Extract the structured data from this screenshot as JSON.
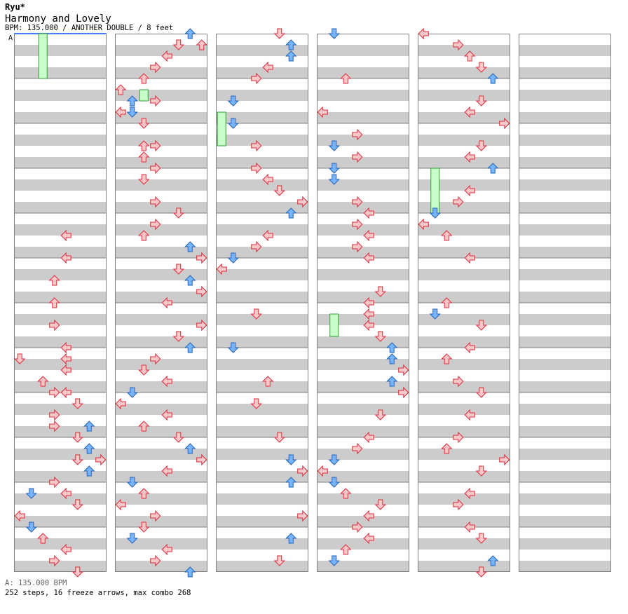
{
  "header": {
    "author": "Ryu*",
    "song_title": "Harmony and Lovely",
    "chart_info": "BPM: 135.000 / ANOTHER DOUBLE / 8 feet"
  },
  "bpm_marker": "A",
  "footer": {
    "bpm_legend": "A: 135.000 BPM",
    "stats": "252 steps, 16 freeze arrows, max combo 268"
  },
  "colors": {
    "stripe": "#cccccc",
    "lane_bg": "#ffffff",
    "border": "#808080",
    "arrow_red_fill": "#ffc8c8",
    "arrow_red_stroke": "#e0283c",
    "arrow_blue_fill": "#78b4ff",
    "arrow_blue_stroke": "#2060c0",
    "arrow_purple_fill": "#ffb4ff",
    "arrow_purple_stroke": "#d040d0",
    "freeze_fill": "#c8ffc8",
    "freeze_stroke": "#30a030",
    "bpm_line": "#4080ff"
  },
  "chart_data": {
    "type": "step-chart",
    "columns": 6,
    "measures_per_column": 12,
    "lanes": 8,
    "divisions_per_measure": 16,
    "notes": [
      [
        0,
        4.5,
        4,
        "l"
      ],
      [
        0,
        5.0,
        4,
        "l"
      ],
      [
        0,
        5.5,
        3,
        "u"
      ],
      [
        0,
        6.0,
        3,
        "u"
      ],
      [
        0,
        6.5,
        3,
        "r"
      ],
      [
        0,
        7.0,
        4,
        "l"
      ],
      [
        0,
        7.25,
        0,
        "d"
      ],
      [
        0,
        7.25,
        4,
        "l"
      ],
      [
        0,
        7.5,
        4,
        "l"
      ],
      [
        0,
        7.75,
        2,
        "u"
      ],
      [
        0,
        8.0,
        4,
        "l"
      ],
      [
        0,
        8.0,
        3,
        "r"
      ],
      [
        0,
        8.25,
        5,
        "d"
      ],
      [
        0,
        8.5,
        3,
        "r"
      ],
      [
        0,
        8.75,
        6,
        "u"
      ],
      [
        0,
        8.75,
        3,
        "r"
      ],
      [
        0,
        9.0,
        5,
        "d"
      ],
      [
        0,
        9.25,
        6,
        "u"
      ],
      [
        0,
        9.5,
        7,
        "r"
      ],
      [
        0,
        9.5,
        5,
        "d"
      ],
      [
        0,
        9.75,
        6,
        "u"
      ],
      [
        0,
        10.0,
        3,
        "r"
      ],
      [
        0,
        10.25,
        4,
        "l"
      ],
      [
        0,
        10.25,
        1,
        "d"
      ],
      [
        0,
        10.5,
        5,
        "d"
      ],
      [
        0,
        10.75,
        0,
        "l"
      ],
      [
        0,
        11.0,
        1,
        "d"
      ],
      [
        0,
        11.25,
        2,
        "u"
      ],
      [
        0,
        11.5,
        4,
        "l"
      ],
      [
        0,
        11.75,
        3,
        "r"
      ],
      [
        0,
        12.0,
        5,
        "d"
      ],
      [
        1,
        0,
        6,
        "u"
      ],
      [
        1,
        0.25,
        7,
        "u"
      ],
      [
        1,
        0.25,
        5,
        "d"
      ],
      [
        1,
        0.5,
        4,
        "l"
      ],
      [
        1,
        0.75,
        3,
        "r"
      ],
      [
        1,
        1.0,
        2,
        "u"
      ],
      [
        1,
        1.25,
        0,
        "u"
      ],
      [
        1,
        1.5,
        1,
        "u"
      ],
      [
        1,
        1.75,
        0,
        "l"
      ],
      [
        1,
        1.75,
        1,
        "d"
      ],
      [
        1,
        1.5,
        3,
        "r"
      ],
      [
        1,
        2.0,
        2,
        "d"
      ],
      [
        1,
        2.5,
        3,
        "r"
      ],
      [
        1,
        2.5,
        2,
        "u"
      ],
      [
        1,
        2.75,
        2,
        "u"
      ],
      [
        1,
        3.0,
        3,
        "r"
      ],
      [
        1,
        3.25,
        2,
        "d"
      ],
      [
        1,
        3.75,
        3,
        "r"
      ],
      [
        1,
        4.0,
        5,
        "d"
      ],
      [
        1,
        4.25,
        3,
        "r"
      ],
      [
        1,
        4.5,
        2,
        "u"
      ],
      [
        1,
        4.75,
        6,
        "u"
      ],
      [
        1,
        5.0,
        7,
        "r"
      ],
      [
        1,
        5.25,
        5,
        "d"
      ],
      [
        1,
        5.5,
        6,
        "u"
      ],
      [
        1,
        5.75,
        7,
        "r"
      ],
      [
        1,
        6.0,
        4,
        "l"
      ],
      [
        1,
        6.5,
        7,
        "r"
      ],
      [
        1,
        6.75,
        5,
        "d"
      ],
      [
        1,
        7.0,
        6,
        "u"
      ],
      [
        1,
        7.25,
        3,
        "r"
      ],
      [
        1,
        7.5,
        2,
        "d"
      ],
      [
        1,
        7.75,
        4,
        "l"
      ],
      [
        1,
        8.0,
        1,
        "d"
      ],
      [
        1,
        8.25,
        0,
        "l"
      ],
      [
        1,
        8.5,
        4,
        "l"
      ],
      [
        1,
        8.75,
        2,
        "u"
      ],
      [
        1,
        9.0,
        5,
        "d"
      ],
      [
        1,
        9.25,
        6,
        "u"
      ],
      [
        1,
        9.5,
        7,
        "r"
      ],
      [
        1,
        9.75,
        4,
        "l"
      ],
      [
        1,
        10.0,
        1,
        "d"
      ],
      [
        1,
        10.25,
        2,
        "u"
      ],
      [
        1,
        10.5,
        0,
        "l"
      ],
      [
        1,
        10.75,
        3,
        "r"
      ],
      [
        1,
        11.0,
        2,
        "d"
      ],
      [
        1,
        11.25,
        1,
        "d"
      ],
      [
        1,
        11.5,
        4,
        "l"
      ],
      [
        1,
        11.75,
        3,
        "r"
      ],
      [
        1,
        12.0,
        6,
        "u"
      ],
      [
        2,
        0,
        5,
        "d"
      ],
      [
        2,
        0.25,
        6,
        "u"
      ],
      [
        2,
        0.5,
        6,
        "u"
      ],
      [
        2,
        0.75,
        4,
        "l"
      ],
      [
        2,
        1.0,
        3,
        "r"
      ],
      [
        2,
        1.5,
        1,
        "d"
      ],
      [
        2,
        2.0,
        1,
        "d"
      ],
      [
        2,
        2.5,
        3,
        "r"
      ],
      [
        2,
        3.0,
        3,
        "r"
      ],
      [
        2,
        3.25,
        4,
        "l"
      ],
      [
        2,
        3.5,
        5,
        "d"
      ],
      [
        2,
        3.75,
        7,
        "r"
      ],
      [
        2,
        4.0,
        6,
        "u"
      ],
      [
        2,
        4.5,
        4,
        "l"
      ],
      [
        2,
        4.75,
        3,
        "r"
      ],
      [
        2,
        5.0,
        1,
        "d"
      ],
      [
        2,
        5.25,
        0,
        "l"
      ],
      [
        2,
        6.25,
        3,
        "d"
      ],
      [
        2,
        7.0,
        1,
        "d"
      ],
      [
        2,
        7.75,
        4,
        "u"
      ],
      [
        2,
        8.25,
        3,
        "d"
      ],
      [
        2,
        9.0,
        5,
        "d"
      ],
      [
        2,
        9.5,
        6,
        "d"
      ],
      [
        2,
        9.75,
        7,
        "r"
      ],
      [
        2,
        10.0,
        6,
        "u"
      ],
      [
        2,
        10.75,
        7,
        "r"
      ],
      [
        2,
        11.25,
        6,
        "u"
      ],
      [
        2,
        11.75,
        5,
        "d"
      ],
      [
        3,
        0,
        1,
        "d"
      ],
      [
        3,
        1.0,
        2,
        "u"
      ],
      [
        3,
        1.75,
        0,
        "l"
      ],
      [
        3,
        2.25,
        3,
        "r"
      ],
      [
        3,
        2.5,
        1,
        "d"
      ],
      [
        3,
        2.75,
        3,
        "r"
      ],
      [
        3,
        3.0,
        1,
        "d"
      ],
      [
        3,
        3.25,
        1,
        "d"
      ],
      [
        3,
        3.75,
        3,
        "r"
      ],
      [
        3,
        4.0,
        4,
        "l"
      ],
      [
        3,
        4.25,
        3,
        "r"
      ],
      [
        3,
        4.5,
        4,
        "l"
      ],
      [
        3,
        4.75,
        3,
        "r"
      ],
      [
        3,
        5.0,
        4,
        "l"
      ],
      [
        3,
        5.75,
        5,
        "d"
      ],
      [
        3,
        6.0,
        4,
        "l"
      ],
      [
        3,
        6.25,
        4,
        "l"
      ],
      [
        3,
        6.5,
        4,
        "l"
      ],
      [
        3,
        6.75,
        5,
        "d"
      ],
      [
        3,
        7.0,
        6,
        "u"
      ],
      [
        3,
        7.25,
        6,
        "u"
      ],
      [
        3,
        7.5,
        7,
        "r"
      ],
      [
        3,
        7.75,
        6,
        "u"
      ],
      [
        3,
        8.0,
        7,
        "r"
      ],
      [
        3,
        8.5,
        5,
        "d"
      ],
      [
        3,
        9.0,
        4,
        "l"
      ],
      [
        3,
        9.25,
        3,
        "r"
      ],
      [
        3,
        9.5,
        1,
        "d"
      ],
      [
        3,
        9.75,
        0,
        "l"
      ],
      [
        3,
        10.0,
        1,
        "d"
      ],
      [
        3,
        10.25,
        2,
        "u"
      ],
      [
        3,
        10.5,
        5,
        "d"
      ],
      [
        3,
        10.75,
        4,
        "l"
      ],
      [
        3,
        11.0,
        3,
        "r"
      ],
      [
        3,
        11.25,
        4,
        "l"
      ],
      [
        3,
        11.5,
        2,
        "u"
      ],
      [
        3,
        11.75,
        1,
        "d"
      ],
      [
        4,
        0,
        0,
        "l"
      ],
      [
        4,
        0.25,
        3,
        "r"
      ],
      [
        4,
        0.5,
        4,
        "u"
      ],
      [
        4,
        0.75,
        5,
        "d"
      ],
      [
        4,
        1.0,
        6,
        "u"
      ],
      [
        4,
        1.5,
        5,
        "d"
      ],
      [
        4,
        1.75,
        4,
        "l"
      ],
      [
        4,
        2.0,
        7,
        "r"
      ],
      [
        4,
        2.5,
        5,
        "d"
      ],
      [
        4,
        2.75,
        4,
        "l"
      ],
      [
        4,
        3.0,
        6,
        "u"
      ],
      [
        4,
        3.5,
        4,
        "l"
      ],
      [
        4,
        3.75,
        3,
        "r"
      ],
      [
        4,
        4.0,
        1,
        "d"
      ],
      [
        4,
        4.25,
        0,
        "l"
      ],
      [
        4,
        4.5,
        2,
        "u"
      ],
      [
        4,
        5.0,
        4,
        "l"
      ],
      [
        4,
        6.0,
        2,
        "u"
      ],
      [
        4,
        6.25,
        1,
        "d"
      ],
      [
        4,
        6.5,
        5,
        "d"
      ],
      [
        4,
        7.0,
        4,
        "l"
      ],
      [
        4,
        7.25,
        2,
        "u"
      ],
      [
        4,
        7.75,
        3,
        "r"
      ],
      [
        4,
        8.0,
        5,
        "d"
      ],
      [
        4,
        8.5,
        4,
        "l"
      ],
      [
        4,
        9.0,
        3,
        "r"
      ],
      [
        4,
        9.25,
        2,
        "u"
      ],
      [
        4,
        9.5,
        7,
        "r"
      ],
      [
        4,
        9.75,
        5,
        "d"
      ],
      [
        4,
        10.25,
        4,
        "l"
      ],
      [
        4,
        10.5,
        3,
        "r"
      ],
      [
        4,
        11.0,
        4,
        "l"
      ],
      [
        4,
        11.25,
        5,
        "d"
      ],
      [
        4,
        11.75,
        6,
        "u"
      ],
      [
        4,
        12.0,
        5,
        "d"
      ]
    ],
    "freezes": [
      [
        0,
        0,
        1.0,
        2
      ],
      [
        1,
        1.25,
        1.5,
        2
      ],
      [
        2,
        1.75,
        2.5,
        0
      ],
      [
        3,
        6.25,
        6.75,
        1
      ],
      [
        4,
        3.0,
        4.0,
        1
      ]
    ]
  }
}
